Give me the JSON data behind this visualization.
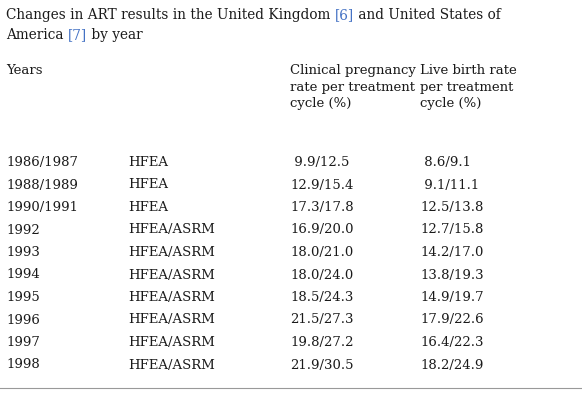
{
  "title_line1": [
    {
      "text": "Changes in ART results in the United Kingdom ",
      "color": "#1a1a1a"
    },
    {
      "text": "[6]",
      "color": "#4472C4"
    },
    {
      "text": " and United States of",
      "color": "#1a1a1a"
    }
  ],
  "title_line2": [
    {
      "text": "America ",
      "color": "#1a1a1a"
    },
    {
      "text": "[7]",
      "color": "#4472C4"
    },
    {
      "text": " by year",
      "color": "#1a1a1a"
    }
  ],
  "header_col1": "Years",
  "header_col3": "Clinical pregnancy\nrate per treatment\ncycle (%)",
  "header_col4": "Live birth rate\nper treatment\ncycle (%)",
  "rows": [
    [
      "1986/1987",
      "HFEA",
      " 9.9/12.5",
      " 8.6/9.1"
    ],
    [
      "1988/1989",
      "HFEA",
      "12.9/15.4",
      " 9.1/11.1"
    ],
    [
      "1990/1991",
      "HFEA",
      "17.3/17.8",
      "12.5/13.8"
    ],
    [
      "1992",
      "HFEA/ASRM",
      "16.9/20.0",
      "12.7/15.8"
    ],
    [
      "1993",
      "HFEA/ASRM",
      "18.0/21.0",
      "14.2/17.0"
    ],
    [
      "1994",
      "HFEA/ASRM",
      "18.0/24.0",
      "13.8/19.3"
    ],
    [
      "1995",
      "HFEA/ASRM",
      "18.5/24.3",
      "14.9/19.7"
    ],
    [
      "1996",
      "HFEA/ASRM",
      "21.5/27.3",
      "17.9/22.6"
    ],
    [
      "1997",
      "HFEA/ASRM",
      "19.8/27.2",
      "16.4/22.3"
    ],
    [
      "1998",
      "HFEA/ASRM",
      "21.9/30.5",
      "18.2/24.9"
    ]
  ],
  "background_color": "#FFFFFF",
  "text_color": "#1a1a1a",
  "link_color": "#4472C4",
  "font_size": 9.5,
  "title_font_size": 9.8,
  "figsize": [
    5.82,
    3.96
  ],
  "dpi": 100
}
